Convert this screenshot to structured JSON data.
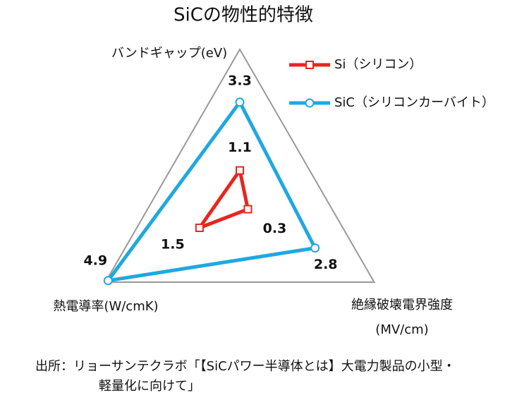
{
  "chart_data": {
    "type": "radar",
    "title": "SiCの物性的特徴",
    "categories": [
      "バンドギャップ(eV)",
      "絶縁破壊電界強度\n(MV/cm)",
      "熱電導率(W/cmK)"
    ],
    "rlim": [
      0,
      5
    ],
    "series": [
      {
        "name": "Si（シリコン）",
        "color": "#e8261e",
        "marker": "square",
        "values": [
          1.1,
          0.3,
          1.5
        ]
      },
      {
        "name": "SiC（シリコンカーバイト）",
        "color": "#1fa8e0",
        "marker": "circle",
        "values": [
          3.3,
          2.8,
          4.9
        ]
      }
    ],
    "source": [
      "出所：リョーサンテクラボ「【SiCパワー半導体とは】大電力製品の小型・",
      "軽量化に向けて」"
    ]
  }
}
